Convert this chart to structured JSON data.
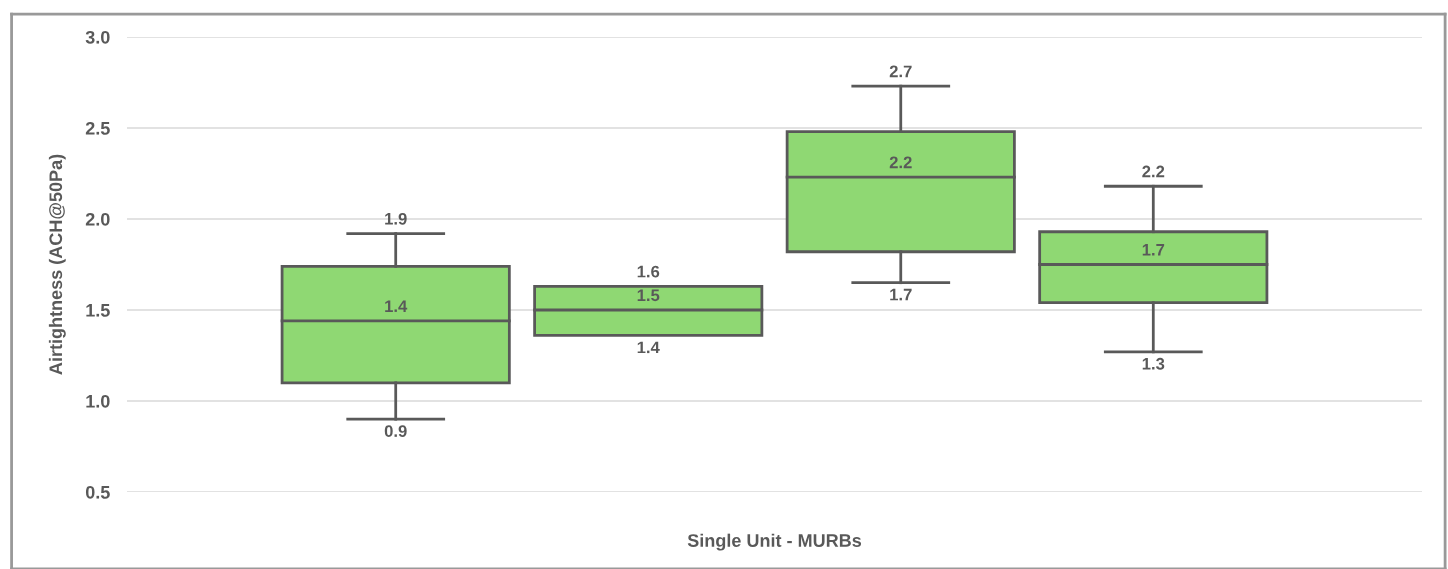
{
  "chart_data": {
    "type": "box",
    "ylabel": "Airtightness (ACH@50Pa)",
    "categories": [
      "Single Unit - MURBs"
    ],
    "series": [
      {
        "color": "#8fd873",
        "boxes": [
          {
            "low": 0.9,
            "q1": 1.1,
            "median": 1.44,
            "q3": 1.74,
            "high": 1.92
          }
        ],
        "value_labels": [
          [
            "1.9",
            "1.4",
            "0.9"
          ]
        ]
      },
      {
        "color": "#8fd873",
        "boxes": [
          {
            "low": 1.36,
            "q1": 1.36,
            "median": 1.5,
            "q3": 1.63,
            "high": 1.63
          }
        ],
        "value_labels": [
          [
            "1.6",
            "1.5",
            "1.4"
          ]
        ]
      },
      {
        "color": "#8fd873",
        "boxes": [
          {
            "low": 1.65,
            "q1": 1.82,
            "median": 2.23,
            "q3": 2.48,
            "high": 2.73
          }
        ],
        "value_labels": [
          [
            "2.7",
            "2.2",
            "1.7"
          ]
        ]
      },
      {
        "color": "#8fd873",
        "boxes": [
          {
            "low": 1.27,
            "q1": 1.54,
            "median": 1.75,
            "q3": 1.93,
            "high": 2.18
          }
        ],
        "value_labels": [
          [
            "2.2",
            "1.7",
            "1.3"
          ]
        ]
      }
    ],
    "ylim": [
      0.5,
      3.0
    ],
    "yticks": [
      {
        "value": 0.5,
        "label": "0.5"
      },
      {
        "value": 1.0,
        "label": "1.0"
      },
      {
        "value": 1.5,
        "label": "1.5"
      },
      {
        "value": 2.0,
        "label": "2.0"
      },
      {
        "value": 2.5,
        "label": "2.5"
      },
      {
        "value": 3.0,
        "label": "3.0"
      }
    ],
    "grid": "y",
    "legend": false
  }
}
